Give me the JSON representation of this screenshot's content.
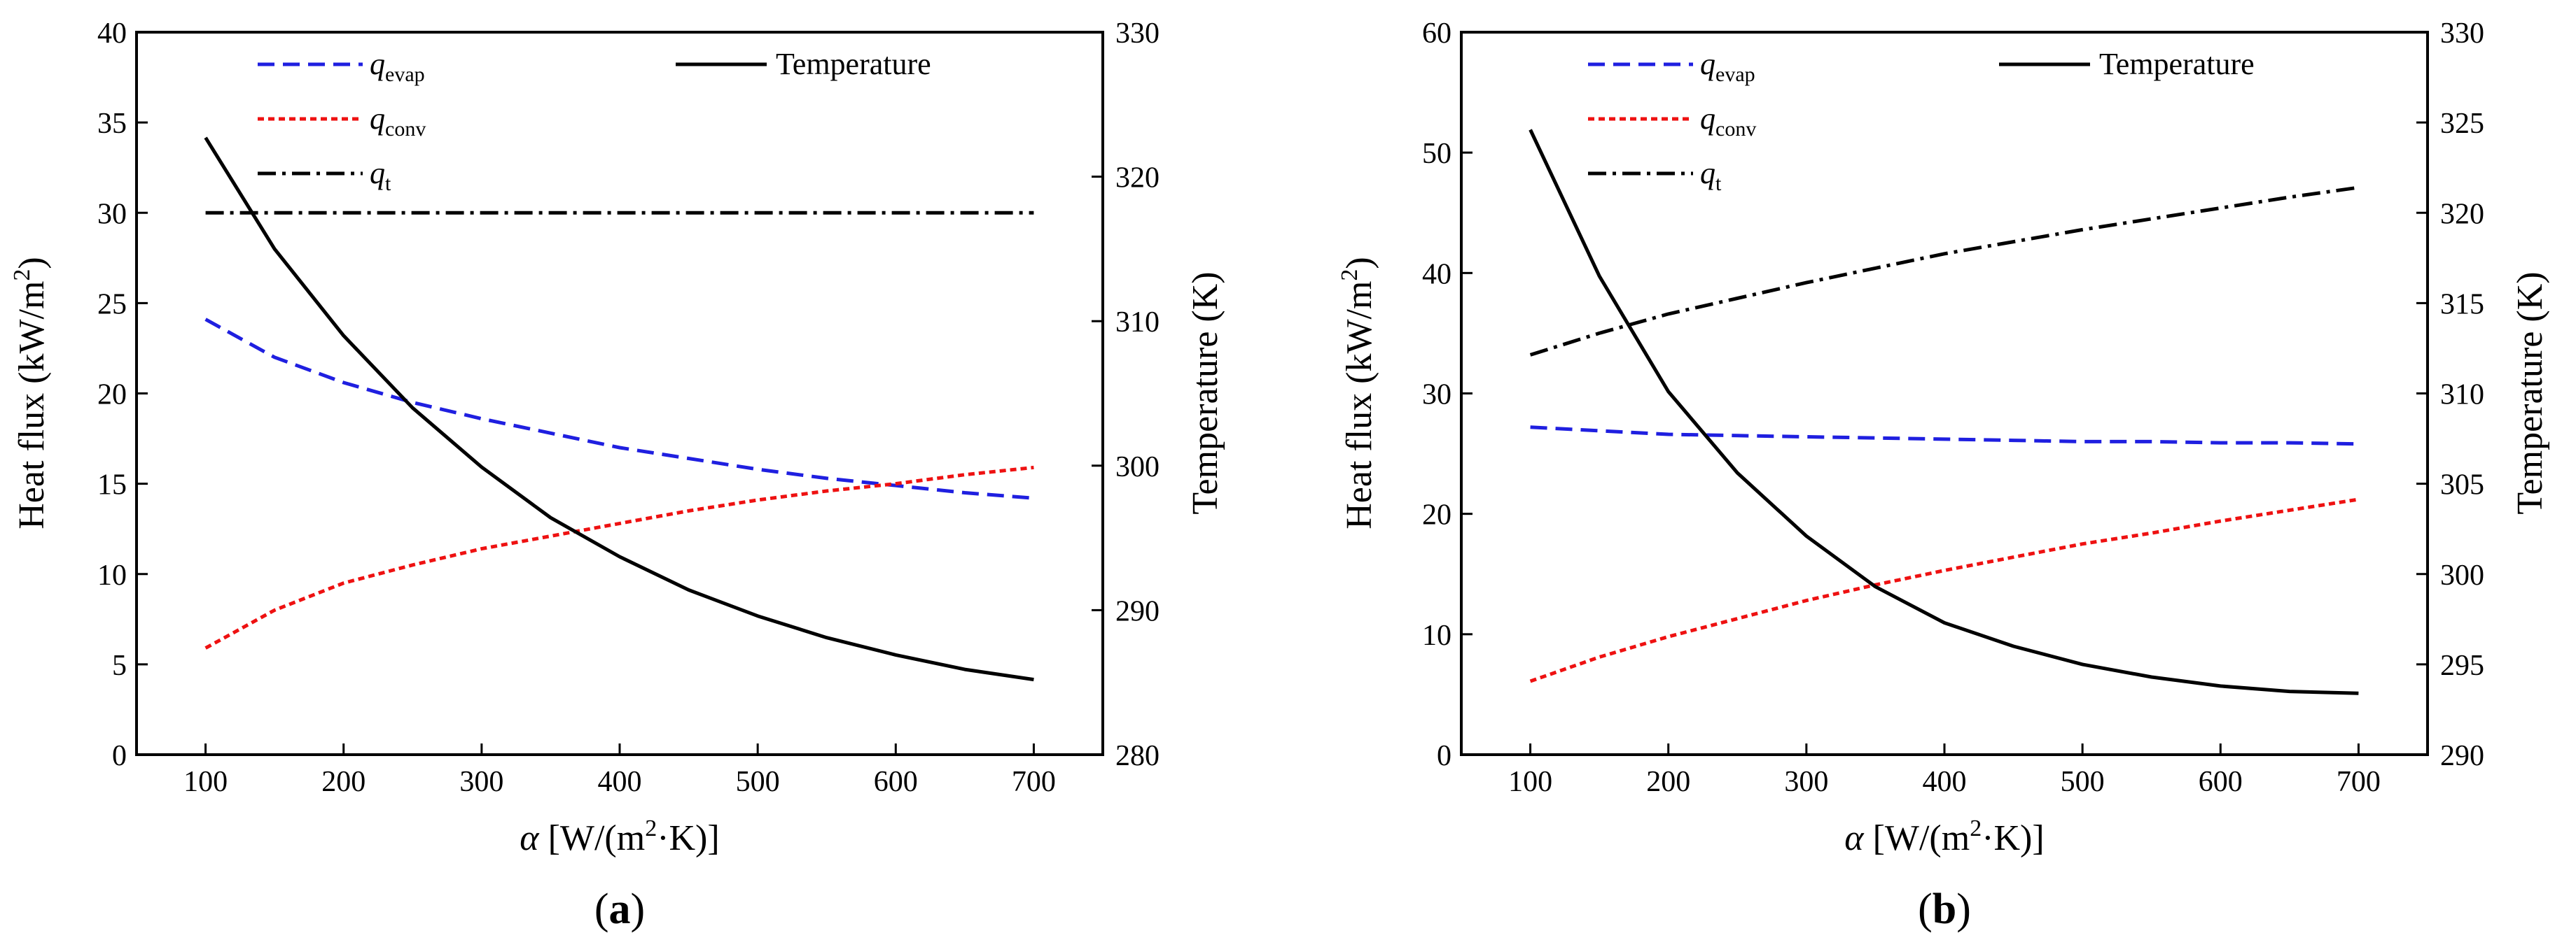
{
  "chart_data": [
    {
      "type": "line",
      "panel_label": {
        "open": "(",
        "letter": "a",
        "close": ")"
      },
      "xlabel": {
        "symbol": "α",
        "main": " [W/(m",
        "sup": "2",
        "tail": "·K)]"
      },
      "ylabel": {
        "main": "Heat flux (kW/m",
        "sup": "2",
        "tail": ")"
      },
      "y2label": "Temperature (K)",
      "xlim": [
        50,
        750
      ],
      "xticks": [
        100,
        200,
        300,
        400,
        500,
        600,
        700
      ],
      "ylim": [
        0,
        40
      ],
      "yticks": [
        0,
        5,
        10,
        15,
        20,
        25,
        30,
        35,
        40
      ],
      "y2lim": [
        280,
        330
      ],
      "y2ticks": [
        280,
        290,
        300,
        310,
        320,
        330
      ],
      "legend_placement": "top",
      "x": [
        100,
        150,
        200,
        250,
        300,
        350,
        400,
        450,
        500,
        550,
        600,
        650,
        700
      ],
      "series": [
        {
          "name": {
            "base": "q",
            "sub": "evap"
          },
          "axis": "left",
          "style": "dashed",
          "color": "#1f1fe0",
          "values": [
            24.1,
            22.0,
            20.6,
            19.5,
            18.6,
            17.8,
            17.0,
            16.4,
            15.8,
            15.3,
            14.9,
            14.5,
            14.2
          ]
        },
        {
          "name": {
            "base": "q",
            "sub": "conv"
          },
          "axis": "left",
          "style": "dotted",
          "color": "#ee1111",
          "values": [
            5.9,
            8.0,
            9.5,
            10.5,
            11.4,
            12.1,
            12.8,
            13.5,
            14.1,
            14.6,
            15.0,
            15.5,
            15.9
          ]
        },
        {
          "name": {
            "base": "q",
            "sub": "t"
          },
          "axis": "left",
          "style": "dashdot",
          "color": "#000000",
          "values": [
            30,
            30,
            30,
            30,
            30,
            30,
            30,
            30,
            30,
            30,
            30,
            30,
            30
          ]
        },
        {
          "name": "Temperature",
          "axis": "right",
          "style": "solid",
          "color": "#000000",
          "values": [
            322.7,
            315.0,
            309.0,
            304.0,
            299.9,
            296.4,
            293.7,
            291.4,
            289.6,
            288.1,
            286.9,
            285.9,
            285.2
          ]
        }
      ]
    },
    {
      "type": "line",
      "panel_label": {
        "open": "(",
        "letter": "b",
        "close": ")"
      },
      "xlabel": {
        "symbol": "α",
        "main": " [W/(m",
        "sup": "2",
        "tail": "·K)]"
      },
      "ylabel": {
        "main": "Heat flux (kW/m",
        "sup": "2",
        "tail": ")"
      },
      "y2label": "Temperature (K)",
      "xlim": [
        50,
        750
      ],
      "xticks": [
        100,
        200,
        300,
        400,
        500,
        600,
        700
      ],
      "ylim": [
        0,
        60
      ],
      "yticks": [
        0,
        10,
        20,
        30,
        40,
        50,
        60
      ],
      "y2lim": [
        290,
        330
      ],
      "y2ticks": [
        290,
        295,
        300,
        305,
        310,
        315,
        320,
        325,
        330
      ],
      "legend_placement": "top",
      "x": [
        100,
        150,
        200,
        250,
        300,
        350,
        400,
        450,
        500,
        550,
        600,
        650,
        700
      ],
      "series": [
        {
          "name": {
            "base": "q",
            "sub": "evap"
          },
          "axis": "left",
          "style": "dashed",
          "color": "#1f1fe0",
          "values": [
            27.2,
            26.9,
            26.6,
            26.5,
            26.4,
            26.3,
            26.2,
            26.1,
            26.0,
            26.0,
            25.9,
            25.9,
            25.8
          ]
        },
        {
          "name": {
            "base": "q",
            "sub": "conv"
          },
          "axis": "left",
          "style": "dotted",
          "color": "#ee1111",
          "values": [
            6.1,
            8.1,
            9.8,
            11.3,
            12.8,
            14.1,
            15.3,
            16.4,
            17.5,
            18.4,
            19.4,
            20.3,
            21.2
          ]
        },
        {
          "name": {
            "base": "q",
            "sub": "t"
          },
          "axis": "left",
          "style": "dashdot",
          "color": "#000000",
          "values": [
            33.2,
            35.0,
            36.6,
            37.9,
            39.2,
            40.4,
            41.6,
            42.6,
            43.6,
            44.5,
            45.4,
            46.3,
            47.1
          ]
        },
        {
          "name": "Temperature",
          "axis": "right",
          "style": "solid",
          "color": "#000000",
          "values": [
            324.6,
            316.5,
            310.1,
            305.6,
            302.1,
            299.3,
            297.3,
            296.0,
            295.0,
            294.3,
            293.8,
            293.5,
            293.4
          ]
        }
      ]
    }
  ]
}
